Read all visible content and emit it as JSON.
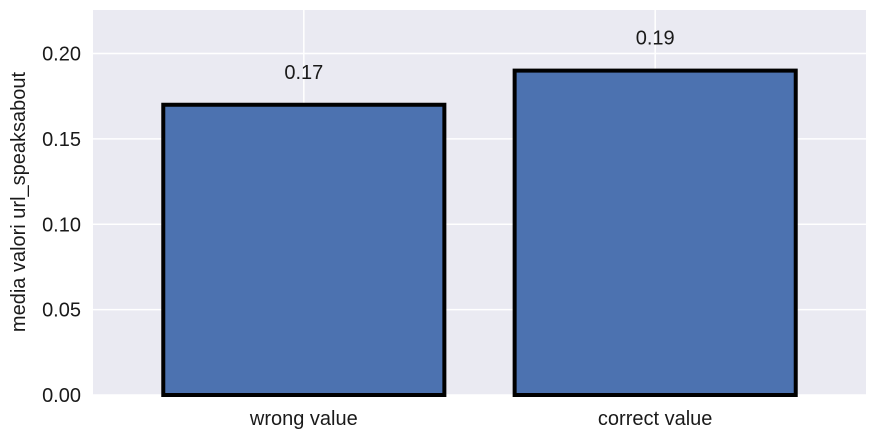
{
  "chart_data": {
    "type": "bar",
    "categories": [
      "wrong value",
      "correct value"
    ],
    "values": [
      0.17,
      0.19
    ],
    "data_labels": [
      "0.17",
      "0.19"
    ],
    "title": "",
    "xlabel": "",
    "ylabel": "media valori url_speaksabout",
    "ylim": [
      0,
      0.2255
    ],
    "yticks": [
      0.0,
      0.05,
      0.1,
      0.15,
      0.2
    ],
    "ytick_labels": [
      "0.00",
      "0.05",
      "0.10",
      "0.15",
      "0.20"
    ],
    "grid": true,
    "legend": "none",
    "colors": {
      "bar_fill": "#4c72b0",
      "bar_edge": "#000000",
      "plot_background": "#eaeaf2",
      "grid": "#ffffff"
    }
  }
}
